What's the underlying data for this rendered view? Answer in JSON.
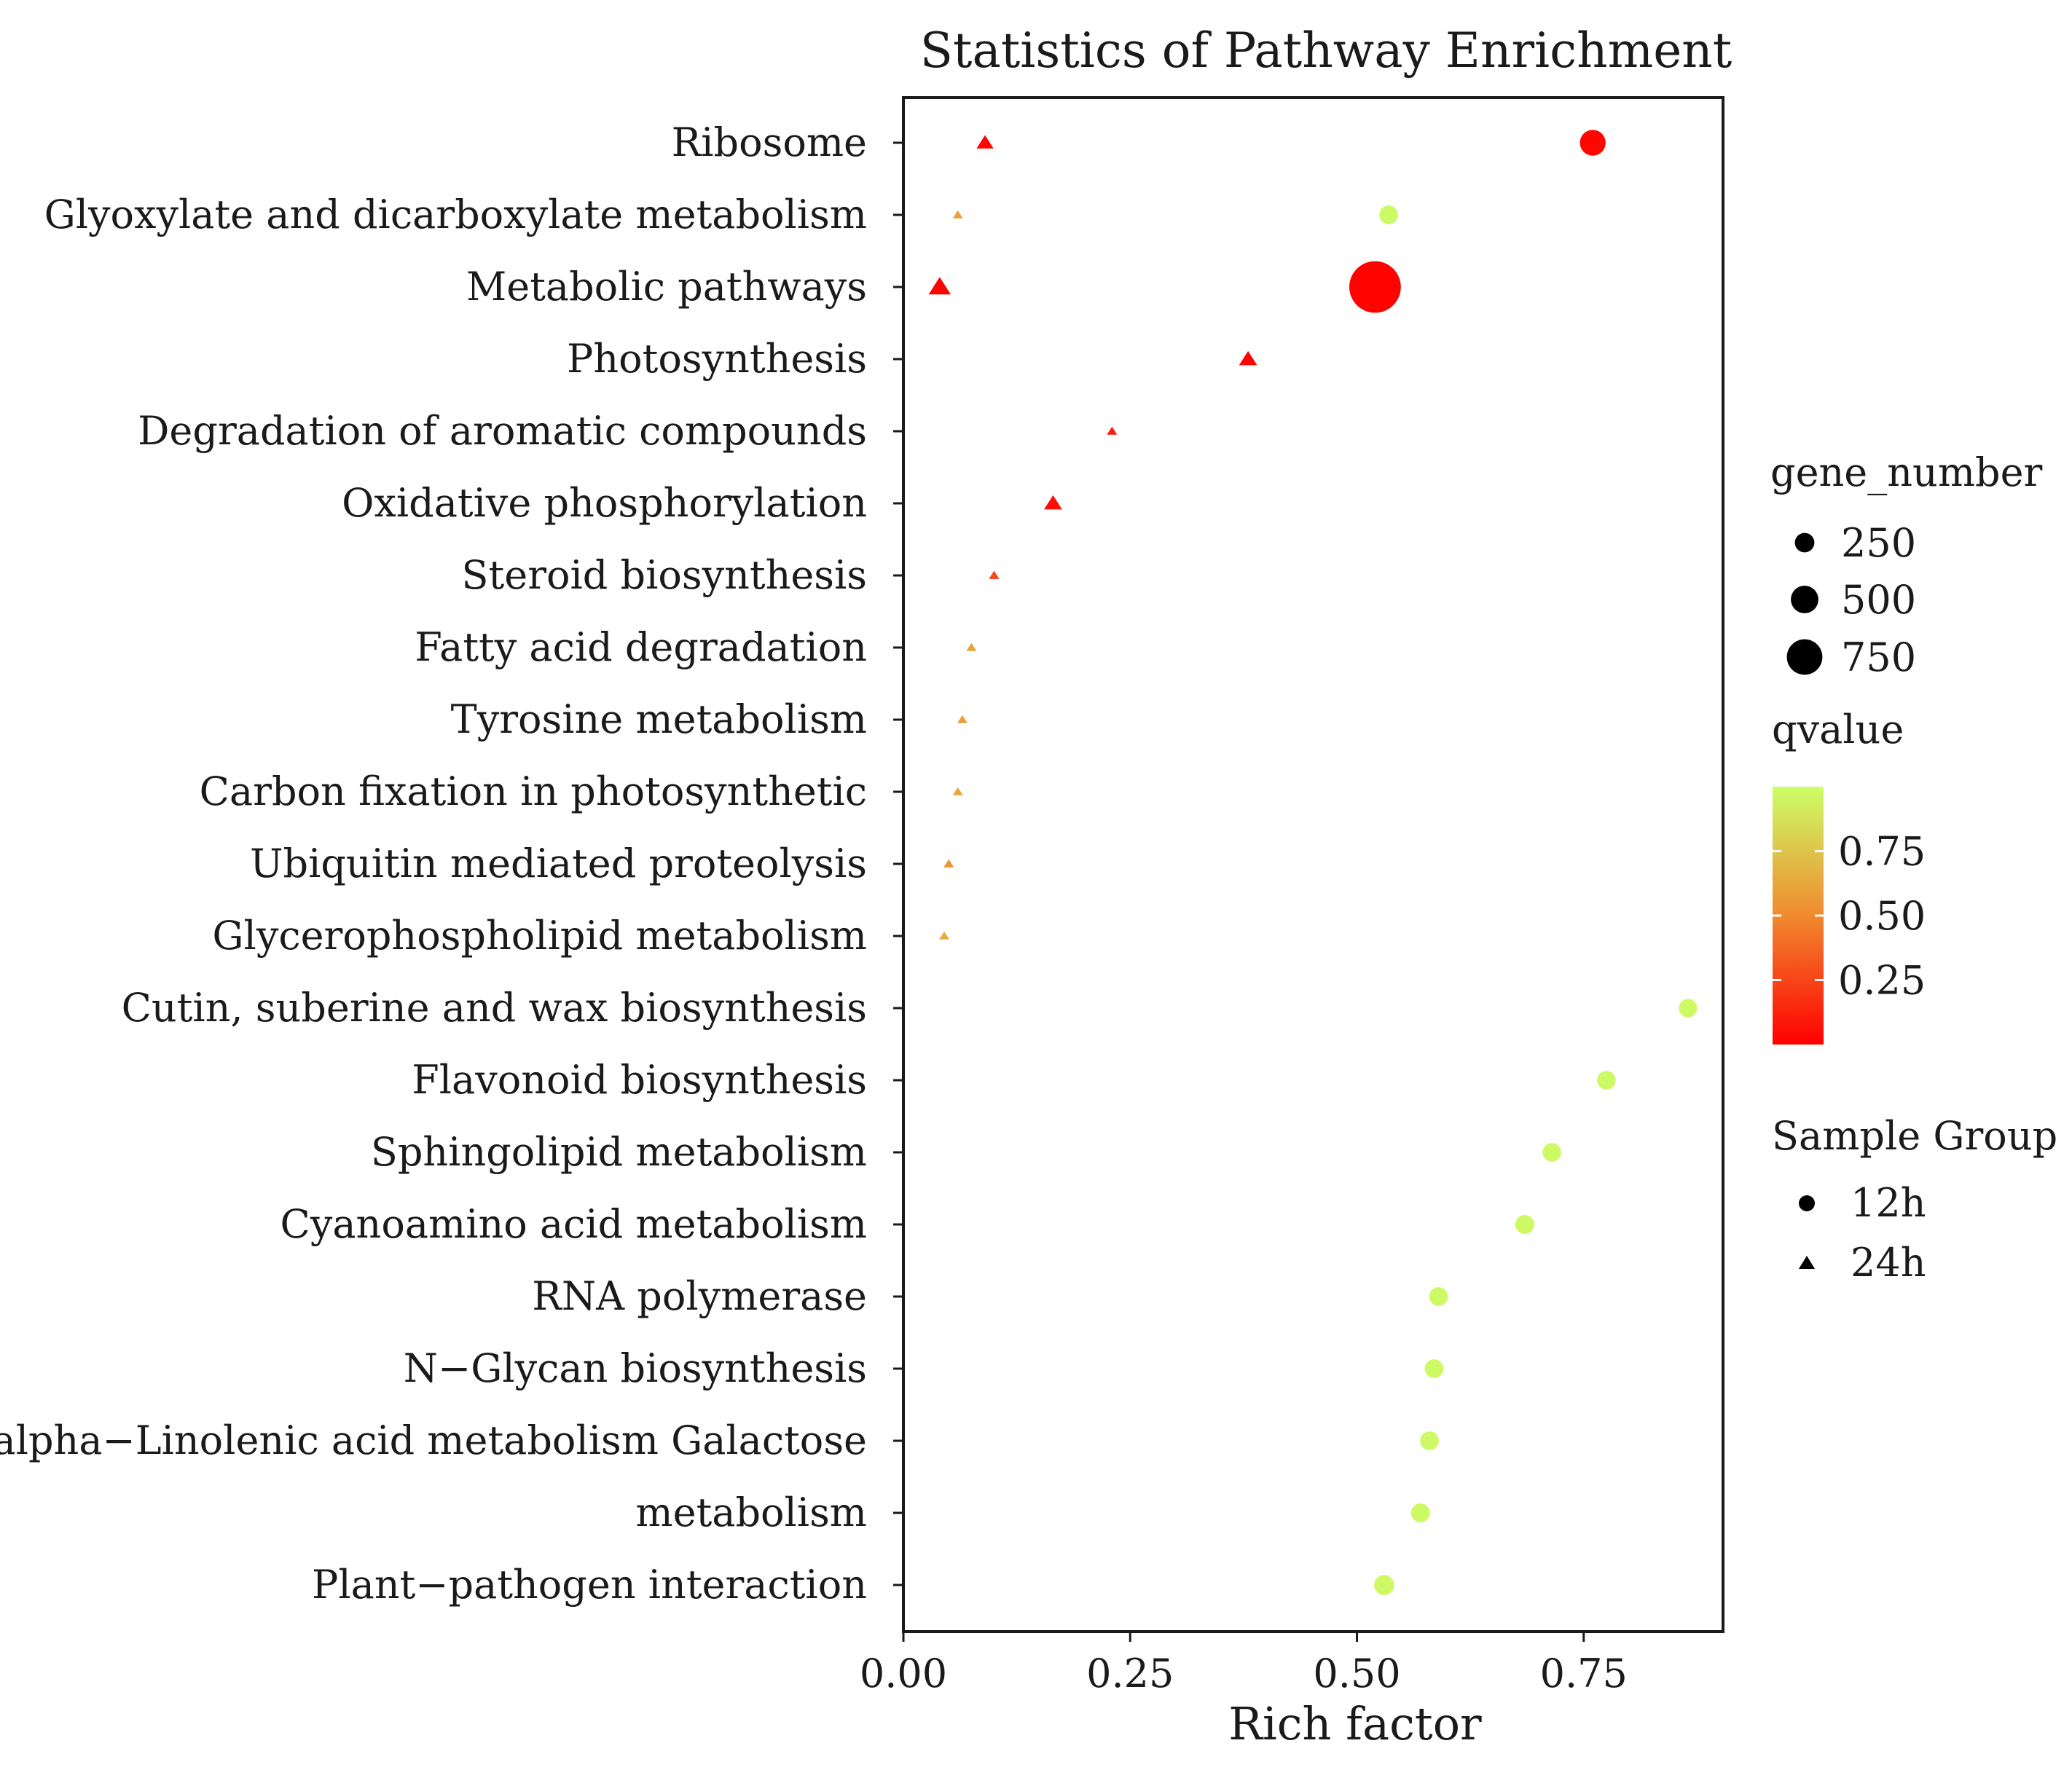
{
  "chart_data": {
    "type": "scatter",
    "title": "Statistics of Pathway Enrichment",
    "xlabel": "Rich factor",
    "ylabel": "",
    "xlim": [
      0,
      0.9
    ],
    "xticks": [
      0.0,
      0.25,
      0.5,
      0.75
    ],
    "xtick_labels": [
      "0.00",
      "0.25",
      "0.50",
      "0.75"
    ],
    "categories": [
      "Ribosome",
      "Glyoxylate and dicarboxylate metabolism",
      "Metabolic pathways",
      "Photosynthesis",
      "Degradation of aromatic compounds",
      "Oxidative phosphorylation",
      "Steroid biosynthesis",
      "Fatty acid degradation",
      "Tyrosine metabolism",
      "Carbon fixation in photosynthetic",
      "Ubiquitin mediated proteolysis",
      "Glycerophospholipid metabolism",
      "Cutin, suberine and wax biosynthesis",
      "Flavonoid biosynthesis",
      "Sphingolipid metabolism",
      "Cyanoamino acid metabolism",
      "RNA polymerase",
      "N−Glycan biosynthesis",
      "alpha−Linolenic acid metabolism Galactose",
      "metabolism",
      "Plant−pathogen interaction"
    ],
    "series": [
      {
        "name": "12h",
        "shape": "circle",
        "points": [
          {
            "pathway": "Ribosome",
            "x": 0.76,
            "gene_number": 220,
            "qvalue": 0.02
          },
          {
            "pathway": "Glyoxylate and dicarboxylate metabolism",
            "x": 0.535,
            "gene_number": 60,
            "qvalue": 0.98
          },
          {
            "pathway": "Metabolic pathways",
            "x": 0.52,
            "gene_number": 800,
            "qvalue": 0.01
          },
          {
            "pathway": "Cutin, suberine and wax biosynthesis",
            "x": 0.865,
            "gene_number": 55,
            "qvalue": 0.98
          },
          {
            "pathway": "Flavonoid biosynthesis",
            "x": 0.775,
            "gene_number": 60,
            "qvalue": 0.98
          },
          {
            "pathway": "Sphingolipid metabolism",
            "x": 0.715,
            "gene_number": 60,
            "qvalue": 0.98
          },
          {
            "pathway": "Cyanoamino acid metabolism",
            "x": 0.685,
            "gene_number": 65,
            "qvalue": 0.98
          },
          {
            "pathway": "RNA polymerase",
            "x": 0.59,
            "gene_number": 60,
            "qvalue": 0.98
          },
          {
            "pathway": "N−Glycan biosynthesis",
            "x": 0.585,
            "gene_number": 60,
            "qvalue": 0.98
          },
          {
            "pathway": "alpha−Linolenic acid metabolism Galactose",
            "x": 0.58,
            "gene_number": 60,
            "qvalue": 0.98
          },
          {
            "pathway": "metabolism",
            "x": 0.57,
            "gene_number": 65,
            "qvalue": 0.98
          },
          {
            "pathway": "Plant−pathogen interaction",
            "x": 0.53,
            "gene_number": 90,
            "qvalue": 0.98
          }
        ]
      },
      {
        "name": "24h",
        "shape": "triangle",
        "points": [
          {
            "pathway": "Ribosome",
            "x": 0.09,
            "gene_number": 110,
            "qvalue": 0.02
          },
          {
            "pathway": "Glyoxylate and dicarboxylate metabolism",
            "x": 0.06,
            "gene_number": 30,
            "qvalue": 0.6
          },
          {
            "pathway": "Metabolic pathways",
            "x": 0.04,
            "gene_number": 160,
            "qvalue": 0.01
          },
          {
            "pathway": "Photosynthesis",
            "x": 0.38,
            "gene_number": 120,
            "qvalue": 0.01
          },
          {
            "pathway": "Degradation of aromatic compounds",
            "x": 0.23,
            "gene_number": 40,
            "qvalue": 0.1
          },
          {
            "pathway": "Oxidative phosphorylation",
            "x": 0.165,
            "gene_number": 120,
            "qvalue": 0.04
          },
          {
            "pathway": "Steroid biosynthesis",
            "x": 0.1,
            "gene_number": 45,
            "qvalue": 0.25
          },
          {
            "pathway": "Fatty acid degradation",
            "x": 0.075,
            "gene_number": 35,
            "qvalue": 0.6
          },
          {
            "pathway": "Tyrosine metabolism",
            "x": 0.065,
            "gene_number": 35,
            "qvalue": 0.6
          },
          {
            "pathway": "Carbon fixation in photosynthetic",
            "x": 0.06,
            "gene_number": 40,
            "qvalue": 0.62
          },
          {
            "pathway": "Ubiquitin mediated proteolysis",
            "x": 0.05,
            "gene_number": 45,
            "qvalue": 0.55
          },
          {
            "pathway": "Glycerophospholipid metabolism",
            "x": 0.045,
            "gene_number": 40,
            "qvalue": 0.65
          }
        ]
      }
    ],
    "legend": {
      "placement": "right",
      "size_title": "gene_number",
      "size_values": [
        250,
        500,
        750
      ],
      "size_labels": [
        "250",
        "500",
        "750"
      ],
      "color_title": "qvalue",
      "color_ticks": [
        0.75,
        0.5,
        0.25
      ],
      "color_tick_labels": [
        "0.75",
        "0.50",
        "0.25"
      ],
      "color_range": [
        0,
        1
      ],
      "color_low": "#ff0000",
      "color_high": "#ccff66",
      "shape_title": "Sample Group",
      "shape_labels": [
        "12h",
        "24h"
      ]
    }
  }
}
